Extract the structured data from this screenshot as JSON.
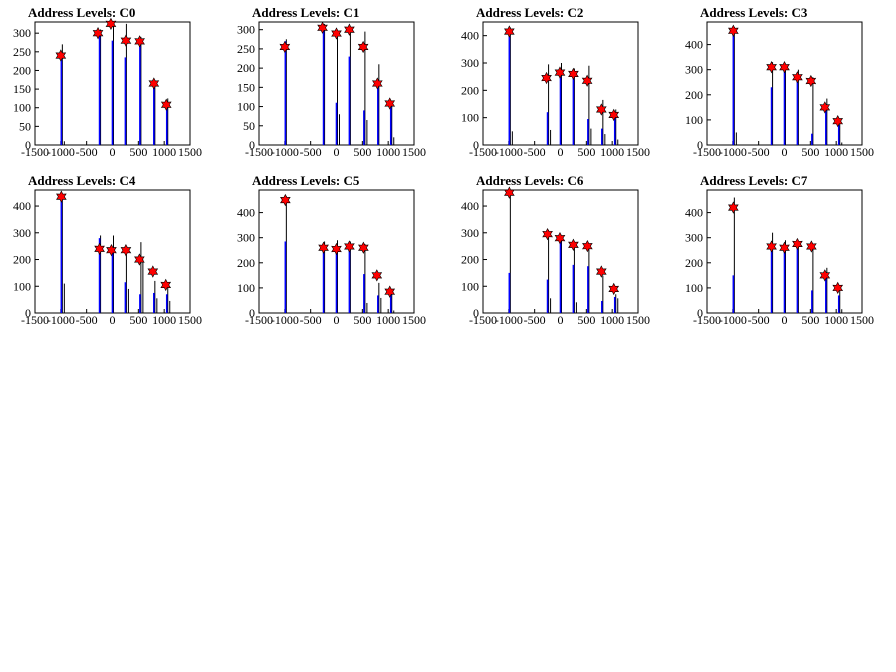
{
  "chart_data": [
    {
      "type": "bar",
      "title": "Address Levels: C0",
      "xlim": [
        -1500,
        1500
      ],
      "ylim": [
        0,
        330
      ],
      "xticks": [
        -1500,
        -1000,
        -500,
        0,
        500,
        1000,
        1500
      ],
      "yticks": [
        0,
        50,
        100,
        150,
        200,
        250,
        300
      ],
      "spikes": [
        {
          "x": -990,
          "y": 270,
          "blue": 245,
          "side": 10
        },
        {
          "x": -250,
          "y": 310,
          "blue": 305,
          "side": 0
        },
        {
          "x": 0,
          "y": 330,
          "blue": 280,
          "side": 0
        },
        {
          "x": 250,
          "y": 325,
          "blue": 235,
          "side": 0
        },
        {
          "x": 530,
          "y": 290,
          "blue": 285,
          "side": 0
        },
        {
          "x": 800,
          "y": 160,
          "blue": 155,
          "side": 0
        },
        {
          "x": 1050,
          "y": 125,
          "blue": 110,
          "side": 0
        }
      ],
      "peaks": [
        {
          "x": -1000,
          "y": 240
        },
        {
          "x": -280,
          "y": 300
        },
        {
          "x": -30,
          "y": 325
        },
        {
          "x": 260,
          "y": 280
        },
        {
          "x": 525,
          "y": 278
        },
        {
          "x": 800,
          "y": 165
        },
        {
          "x": 1040,
          "y": 108
        }
      ]
    },
    {
      "type": "bar",
      "title": "Address Levels: C1",
      "xlim": [
        -1500,
        1500
      ],
      "ylim": [
        0,
        320
      ],
      "xticks": [
        -1500,
        -1000,
        -500,
        0,
        500,
        1000,
        1500
      ],
      "yticks": [
        0,
        50,
        100,
        150,
        200,
        250,
        300
      ],
      "spikes": [
        {
          "x": -990,
          "y": 275,
          "blue": 270,
          "side": 0
        },
        {
          "x": -250,
          "y": 315,
          "blue": 310,
          "side": 0
        },
        {
          "x": 0,
          "y": 295,
          "blue": 110,
          "side": 80
        },
        {
          "x": 250,
          "y": 305,
          "blue": 230,
          "side": 0
        },
        {
          "x": 530,
          "y": 295,
          "blue": 90,
          "side": 65
        },
        {
          "x": 800,
          "y": 210,
          "blue": 165,
          "side": 0
        },
        {
          "x": 1050,
          "y": 110,
          "blue": 105,
          "side": 20
        }
      ],
      "peaks": [
        {
          "x": -1000,
          "y": 255
        },
        {
          "x": -270,
          "y": 305
        },
        {
          "x": 0,
          "y": 290
        },
        {
          "x": 250,
          "y": 300
        },
        {
          "x": 515,
          "y": 255
        },
        {
          "x": 790,
          "y": 160
        },
        {
          "x": 1030,
          "y": 108
        }
      ]
    },
    {
      "type": "bar",
      "title": "Address Levels: C2",
      "xlim": [
        -1500,
        1500
      ],
      "ylim": [
        0,
        450
      ],
      "xticks": [
        -1500,
        -1000,
        -500,
        0,
        500,
        1000,
        1500
      ],
      "yticks": [
        0,
        100,
        200,
        300,
        400
      ],
      "spikes": [
        {
          "x": -990,
          "y": 430,
          "blue": 420,
          "side": 50
        },
        {
          "x": -250,
          "y": 295,
          "blue": 120,
          "side": 55
        },
        {
          "x": 0,
          "y": 300,
          "blue": 270,
          "side": 0
        },
        {
          "x": 250,
          "y": 280,
          "blue": 260,
          "side": 0
        },
        {
          "x": 530,
          "y": 290,
          "blue": 95,
          "side": 60
        },
        {
          "x": 800,
          "y": 165,
          "blue": 60,
          "side": 40
        },
        {
          "x": 1050,
          "y": 130,
          "blue": 100,
          "side": 20
        }
      ],
      "peaks": [
        {
          "x": -990,
          "y": 415
        },
        {
          "x": -270,
          "y": 245
        },
        {
          "x": -10,
          "y": 265
        },
        {
          "x": 250,
          "y": 260
        },
        {
          "x": 515,
          "y": 235
        },
        {
          "x": 790,
          "y": 130
        },
        {
          "x": 1030,
          "y": 110
        }
      ]
    },
    {
      "type": "bar",
      "title": "Address Levels: C3",
      "xlim": [
        -1500,
        1500
      ],
      "ylim": [
        0,
        490
      ],
      "xticks": [
        -1500,
        -1000,
        -500,
        0,
        500,
        1000,
        1500
      ],
      "yticks": [
        0,
        100,
        200,
        300,
        400
      ],
      "spikes": [
        {
          "x": -990,
          "y": 470,
          "blue": 455,
          "side": 50
        },
        {
          "x": -250,
          "y": 330,
          "blue": 230,
          "side": 0
        },
        {
          "x": 0,
          "y": 320,
          "blue": 305,
          "side": 0
        },
        {
          "x": 250,
          "y": 300,
          "blue": 270,
          "side": 0
        },
        {
          "x": 530,
          "y": 270,
          "blue": 45,
          "side": 0
        },
        {
          "x": 800,
          "y": 185,
          "blue": 140,
          "side": 0
        },
        {
          "x": 1050,
          "y": 100,
          "blue": 80,
          "side": 10
        }
      ],
      "peaks": [
        {
          "x": -990,
          "y": 455
        },
        {
          "x": -250,
          "y": 310
        },
        {
          "x": 0,
          "y": 310
        },
        {
          "x": 250,
          "y": 270
        },
        {
          "x": 510,
          "y": 255
        },
        {
          "x": 780,
          "y": 150
        },
        {
          "x": 1030,
          "y": 95
        }
      ]
    },
    {
      "type": "bar",
      "title": "Address Levels: C4",
      "xlim": [
        -1500,
        1500
      ],
      "ylim": [
        0,
        460
      ],
      "xticks": [
        -1500,
        -1000,
        -500,
        0,
        500,
        1000,
        1500
      ],
      "yticks": [
        0,
        100,
        200,
        300,
        400
      ],
      "spikes": [
        {
          "x": -990,
          "y": 445,
          "blue": 430,
          "side": 110
        },
        {
          "x": -250,
          "y": 290,
          "blue": 280,
          "side": 0
        },
        {
          "x": 0,
          "y": 290,
          "blue": 240,
          "side": 0
        },
        {
          "x": 250,
          "y": 245,
          "blue": 115,
          "side": 90
        },
        {
          "x": 530,
          "y": 265,
          "blue": 70,
          "side": 200
        },
        {
          "x": 800,
          "y": 120,
          "blue": 75,
          "side": 55
        },
        {
          "x": 1050,
          "y": 100,
          "blue": 70,
          "side": 45
        }
      ],
      "peaks": [
        {
          "x": -990,
          "y": 435
        },
        {
          "x": -250,
          "y": 240
        },
        {
          "x": -20,
          "y": 235
        },
        {
          "x": 260,
          "y": 235
        },
        {
          "x": 520,
          "y": 200
        },
        {
          "x": 780,
          "y": 155
        },
        {
          "x": 1030,
          "y": 105
        }
      ]
    },
    {
      "type": "bar",
      "title": "Address Levels: C5",
      "xlim": [
        -1500,
        1500
      ],
      "ylim": [
        0,
        490
      ],
      "xticks": [
        -1500,
        -1000,
        -500,
        0,
        500,
        1000,
        1500
      ],
      "yticks": [
        0,
        100,
        200,
        300,
        400
      ],
      "spikes": [
        {
          "x": -990,
          "y": 465,
          "blue": 285,
          "side": 0
        },
        {
          "x": -250,
          "y": 285,
          "blue": 270,
          "side": 0
        },
        {
          "x": 0,
          "y": 290,
          "blue": 260,
          "side": 0
        },
        {
          "x": 250,
          "y": 285,
          "blue": 270,
          "side": 0
        },
        {
          "x": 530,
          "y": 275,
          "blue": 155,
          "side": 40
        },
        {
          "x": 800,
          "y": 120,
          "blue": 70,
          "side": 60
        },
        {
          "x": 1050,
          "y": 80,
          "blue": 75,
          "side": 10
        }
      ],
      "peaks": [
        {
          "x": -990,
          "y": 450
        },
        {
          "x": -250,
          "y": 260
        },
        {
          "x": 0,
          "y": 255
        },
        {
          "x": 250,
          "y": 265
        },
        {
          "x": 520,
          "y": 260
        },
        {
          "x": 780,
          "y": 150
        },
        {
          "x": 1030,
          "y": 85
        }
      ]
    },
    {
      "type": "bar",
      "title": "Address Levels: C6",
      "xlim": [
        -1500,
        1500
      ],
      "ylim": [
        0,
        460
      ],
      "xticks": [
        -1500,
        -1000,
        -500,
        0,
        500,
        1000,
        1500
      ],
      "yticks": [
        0,
        100,
        200,
        300,
        400
      ],
      "spikes": [
        {
          "x": -990,
          "y": 455,
          "blue": 150,
          "side": 0
        },
        {
          "x": -250,
          "y": 310,
          "blue": 125,
          "side": 55
        },
        {
          "x": 0,
          "y": 290,
          "blue": 270,
          "side": 0
        },
        {
          "x": 250,
          "y": 260,
          "blue": 180,
          "side": 40
        },
        {
          "x": 530,
          "y": 250,
          "blue": 175,
          "side": 0
        },
        {
          "x": 800,
          "y": 140,
          "blue": 45,
          "side": 0
        },
        {
          "x": 1050,
          "y": 70,
          "blue": 60,
          "side": 55
        }
      ],
      "peaks": [
        {
          "x": -990,
          "y": 450
        },
        {
          "x": -250,
          "y": 295
        },
        {
          "x": -10,
          "y": 280
        },
        {
          "x": 250,
          "y": 255
        },
        {
          "x": 520,
          "y": 250
        },
        {
          "x": 790,
          "y": 155
        },
        {
          "x": 1030,
          "y": 90
        }
      ]
    },
    {
      "type": "bar",
      "title": "Address Levels: C7",
      "xlim": [
        -1500,
        1500
      ],
      "ylim": [
        0,
        490
      ],
      "xticks": [
        -1500,
        -1000,
        -500,
        0,
        500,
        1000,
        1500
      ],
      "yticks": [
        0,
        100,
        200,
        300,
        400
      ],
      "spikes": [
        {
          "x": -990,
          "y": 460,
          "blue": 150,
          "side": 0
        },
        {
          "x": -250,
          "y": 320,
          "blue": 265,
          "side": 0
        },
        {
          "x": 0,
          "y": 290,
          "blue": 260,
          "side": 0
        },
        {
          "x": 250,
          "y": 285,
          "blue": 270,
          "side": 0
        },
        {
          "x": 530,
          "y": 275,
          "blue": 90,
          "side": 0
        },
        {
          "x": 800,
          "y": 180,
          "blue": 145,
          "side": 0
        },
        {
          "x": 1050,
          "y": 95,
          "blue": 70,
          "side": 15
        }
      ],
      "peaks": [
        {
          "x": -990,
          "y": 420
        },
        {
          "x": -250,
          "y": 265
        },
        {
          "x": 0,
          "y": 260
        },
        {
          "x": 250,
          "y": 275
        },
        {
          "x": 520,
          "y": 265
        },
        {
          "x": 780,
          "y": 150
        },
        {
          "x": 1030,
          "y": 100
        }
      ]
    }
  ]
}
